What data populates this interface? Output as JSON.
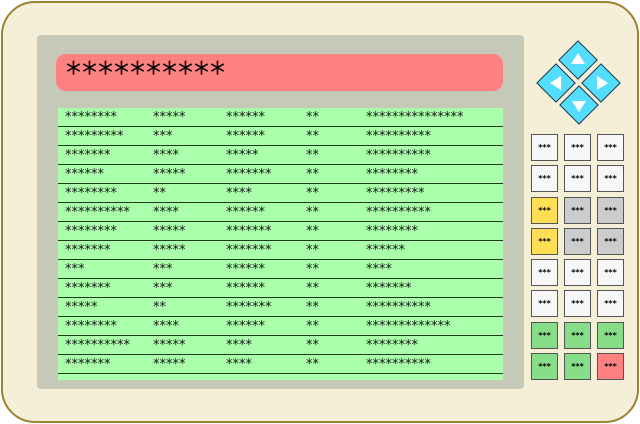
{
  "title": "**********",
  "rows": [
    [
      "********",
      "*****",
      "******",
      "**",
      "***************"
    ],
    [
      "*********",
      "***",
      "******",
      "**",
      "**********"
    ],
    [
      "*******",
      "****",
      "*****",
      "**",
      "**********"
    ],
    [
      "******",
      "*****",
      "*******",
      "**",
      "********"
    ],
    [
      "********",
      "**",
      "****",
      "**",
      "*********"
    ],
    [
      "**********",
      "****",
      "******",
      "**",
      "**********"
    ],
    [
      "********",
      "*****",
      "*******",
      "**",
      "********"
    ],
    [
      "*******",
      "*****",
      "*******",
      "**",
      "******"
    ],
    [
      "***",
      "***",
      "******",
      "**",
      "****"
    ],
    [
      "*******",
      "***",
      "******",
      "**",
      "*******"
    ],
    [
      "*****",
      "**",
      "*******",
      "**",
      "**********"
    ],
    [
      "********",
      "****",
      "******",
      "**",
      "*************"
    ],
    [
      "**********",
      "*****",
      "****",
      "**",
      "********"
    ],
    [
      "*******",
      "*****",
      "****",
      "**",
      "**********"
    ]
  ],
  "dpad": [
    "arrow-up-icon",
    "arrow-left-icon",
    "arrow-right-icon",
    "arrow-down-icon"
  ],
  "keypad": [
    {
      "label": "***",
      "color": "#f7f7f7"
    },
    {
      "label": "***",
      "color": "#f7f7f7"
    },
    {
      "label": "***",
      "color": "#f7f7f7"
    },
    {
      "label": "***",
      "color": "#f7f7f7"
    },
    {
      "label": "***",
      "color": "#f7f7f7"
    },
    {
      "label": "***",
      "color": "#f7f7f7"
    },
    {
      "label": "***",
      "color": "#ffdd55"
    },
    {
      "label": "***",
      "color": "#cccccc"
    },
    {
      "label": "***",
      "color": "#cccccc"
    },
    {
      "label": "***",
      "color": "#ffdd55"
    },
    {
      "label": "***",
      "color": "#cccccc"
    },
    {
      "label": "***",
      "color": "#cccccc"
    },
    {
      "label": "***",
      "color": "#f7f7f7"
    },
    {
      "label": "***",
      "color": "#f7f7f7"
    },
    {
      "label": "***",
      "color": "#f7f7f7"
    },
    {
      "label": "***",
      "color": "#f7f7f7"
    },
    {
      "label": "***",
      "color": "#f7f7f7"
    },
    {
      "label": "***",
      "color": "#f7f7f7"
    },
    {
      "label": "***",
      "color": "#88dd88"
    },
    {
      "label": "***",
      "color": "#88dd88"
    },
    {
      "label": "***",
      "color": "#88dd88"
    },
    {
      "label": "***",
      "color": "#88dd88"
    },
    {
      "label": "***",
      "color": "#88dd88"
    },
    {
      "label": "***",
      "color": "#ff8080"
    }
  ]
}
